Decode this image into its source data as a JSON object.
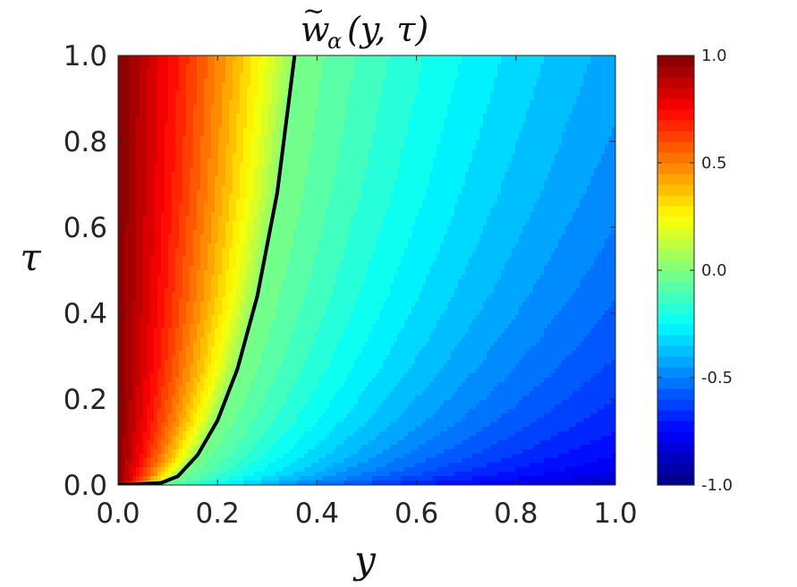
{
  "chart_data": {
    "type": "heatmap",
    "title_parts": {
      "base": "w",
      "tilde": "~",
      "subscript": "α",
      "args": "(y, τ)"
    },
    "xlabel": "y",
    "ylabel": "τ",
    "xlim": [
      0,
      1
    ],
    "ylim": [
      0,
      1
    ],
    "xticks": [
      "0.0",
      "0.2",
      "0.4",
      "0.6",
      "0.8",
      "1.0"
    ],
    "yticks": [
      "0.0",
      "0.2",
      "0.4",
      "0.6",
      "0.8",
      "1.0"
    ],
    "colorbar": {
      "colormap": "jet",
      "range": [
        -1,
        1
      ],
      "ticks": [
        "-1.0",
        "-0.5",
        "0.0",
        "0.5",
        "1.0"
      ],
      "levels": 40
    },
    "field_description_values": {
      "value_at_y0": 1.0,
      "zero_contour": {
        "color": "#000000",
        "points": [
          {
            "y": 0.0,
            "tau": 0.0
          },
          {
            "y": 0.08,
            "tau": 0.002
          },
          {
            "y": 0.12,
            "tau": 0.02
          },
          {
            "y": 0.16,
            "tau": 0.07
          },
          {
            "y": 0.2,
            "tau": 0.15
          },
          {
            "y": 0.24,
            "tau": 0.27
          },
          {
            "y": 0.28,
            "tau": 0.44
          },
          {
            "y": 0.32,
            "tau": 0.68
          },
          {
            "y": 0.355,
            "tau": 1.0
          }
        ]
      }
    }
  }
}
